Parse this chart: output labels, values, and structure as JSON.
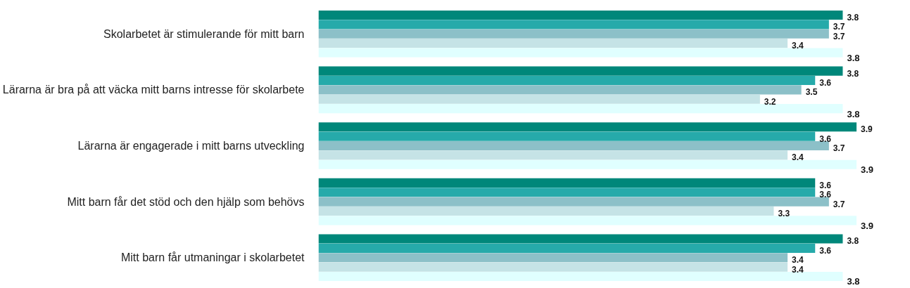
{
  "chart_data": {
    "type": "bar",
    "orientation": "horizontal",
    "categories": [
      "Skolarbetet är stimulerande för mitt barn",
      "Lärarna är bra på att väcka mitt barns intresse för skolarbete",
      "Lärarna är engagerade i mitt barns utveckling",
      "Mitt barn får det stöd och den hjälp som behövs",
      "Mitt barn får utmaningar i skolarbetet"
    ],
    "series": [
      {
        "color": "#00877a",
        "values": [
          3.8,
          3.8,
          3.9,
          3.6,
          3.8
        ]
      },
      {
        "color": "#26aaaa",
        "values": [
          3.7,
          3.6,
          3.6,
          3.6,
          3.6
        ]
      },
      {
        "color": "#8cc0c8",
        "values": [
          3.7,
          3.5,
          3.7,
          3.7,
          3.4
        ]
      },
      {
        "color": "#c5e3e6",
        "values": [
          3.4,
          3.2,
          3.4,
          3.3,
          3.4
        ]
      },
      {
        "color": "#e0ffff",
        "values": [
          3.8,
          3.8,
          3.9,
          3.9,
          3.8
        ]
      }
    ],
    "data_labels": true
  }
}
